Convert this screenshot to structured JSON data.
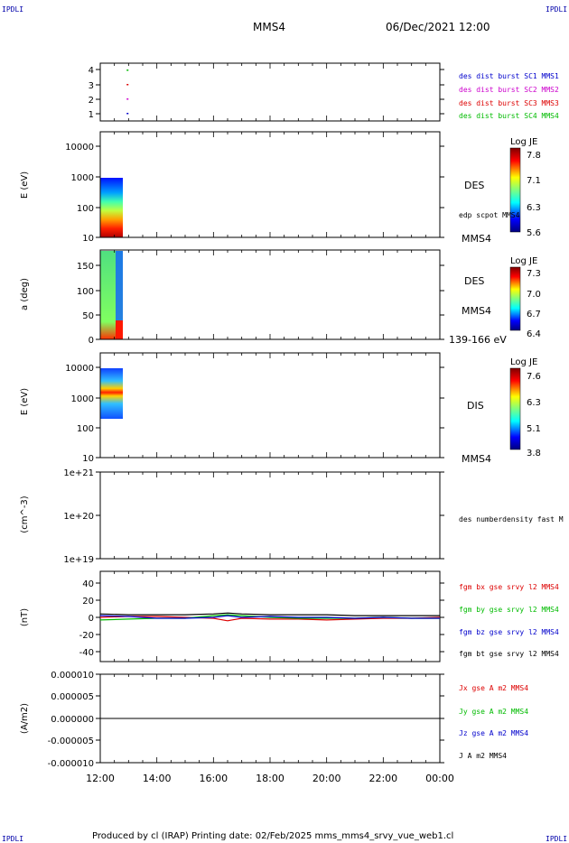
{
  "header": {
    "corner_label": "IPDLI",
    "spacecraft": "MMS4",
    "date": "06/Dec/2021 12:00"
  },
  "footer": {
    "text": "Produced by cl (IRAP)   Printing date: 02/Feb/2025   mms_mms4_srvy_vue_web1.cl"
  },
  "colors": {
    "mms1": "#0000cc",
    "mms2": "#cc00cc",
    "mms3": "#dd0000",
    "mms4": "#00bb00",
    "bt": "#000000"
  },
  "chart_data": [
    {
      "type": "scatter",
      "panel": "burst-availability",
      "ytick_labels": [
        "4",
        "3",
        "2",
        "1"
      ],
      "ylim": [
        0.5,
        4.5
      ],
      "series": [
        {
          "name": "des dist burst SC1 MMS1",
          "x_hours": [
            12.55
          ],
          "y": [
            1
          ]
        },
        {
          "name": "des dist burst SC2 MMS2",
          "x_hours": [
            12.55
          ],
          "y": [
            2
          ]
        },
        {
          "name": "des dist burst SC3 MMS3",
          "x_hours": [
            12.55
          ],
          "y": [
            3
          ]
        },
        {
          "name": "des dist burst SC4 MMS4",
          "x_hours": [
            12.55
          ],
          "y": [
            4
          ]
        }
      ]
    },
    {
      "type": "heatmap",
      "panel": "des-energy-spectrogram",
      "ylabel": "E (eV)",
      "ytick_labels": [
        "10000",
        "1000",
        "100",
        "10"
      ],
      "ylim": [
        10,
        30000
      ],
      "scale": "log",
      "data_x_range": [
        "12:00",
        "12:50"
      ],
      "data_y_range": [
        10,
        1000
      ],
      "labels": [
        "DES",
        "edp scpot MMS4",
        "MMS4"
      ],
      "colorbar": {
        "title": "Log JE",
        "ticks": [
          "7.8",
          "7.1",
          "6.3",
          "5.6"
        ]
      }
    },
    {
      "type": "heatmap",
      "panel": "des-pitch-angle",
      "ylabel": "a (deg)",
      "ytick_labels": [
        "150",
        "100",
        "50",
        "0"
      ],
      "ylim": [
        0,
        180
      ],
      "data_x_range": [
        "12:00",
        "12:50"
      ],
      "labels": [
        "DES",
        "MMS4",
        "139-166 eV"
      ],
      "colorbar": {
        "title": "Log JE",
        "ticks": [
          "7.3",
          "7.0",
          "6.7",
          "6.4"
        ]
      }
    },
    {
      "type": "heatmap",
      "panel": "dis-energy-spectrogram",
      "ylabel": "E (eV)",
      "ytick_labels": [
        "10000",
        "1000",
        "100",
        "10"
      ],
      "ylim": [
        10,
        30000
      ],
      "scale": "log",
      "data_x_range": [
        "12:00",
        "12:50"
      ],
      "data_y_range": [
        200,
        10000
      ],
      "labels": [
        "DIS",
        "MMS4"
      ],
      "colorbar": {
        "title": "Log JE",
        "ticks": [
          "7.6",
          "6.3",
          "5.1",
          "3.8"
        ]
      }
    },
    {
      "type": "line",
      "panel": "density",
      "ylabel": "(cm^-3)",
      "ytick_labels": [
        "1e+21",
        "1e+20",
        "1e+19"
      ],
      "scale": "log",
      "series": [
        {
          "name": "des numberdensity fast M",
          "x_hours": [],
          "values": []
        }
      ]
    },
    {
      "type": "line",
      "panel": "magnetic-field",
      "ylabel": "(nT)",
      "ytick_labels": [
        "40",
        "20",
        "0",
        "-20",
        "-40"
      ],
      "ylim": [
        -50,
        50
      ],
      "x_hours": [
        12,
        13,
        14,
        15,
        16,
        16.5,
        17,
        18,
        19,
        20,
        21,
        22,
        23,
        24
      ],
      "series": [
        {
          "name": "fgm bx gse srvy l2 MMS4",
          "values": [
            0,
            1,
            1,
            0,
            -1,
            -4,
            -1,
            -2,
            -2,
            -3,
            -2,
            -1,
            -1,
            0
          ]
        },
        {
          "name": "fgm by gse srvy l2 MMS4",
          "values": [
            -3,
            -2,
            -1,
            -1,
            2,
            3,
            2,
            0,
            -1,
            -1,
            -1,
            0,
            -1,
            -1
          ]
        },
        {
          "name": "fgm bz gse srvy l2 MMS4",
          "values": [
            2,
            1,
            -1,
            -1,
            0,
            2,
            0,
            1,
            0,
            0,
            -1,
            0,
            -1,
            -1
          ]
        },
        {
          "name": "fgm bt gse srvy l2 MMS4",
          "values": [
            4,
            3,
            3,
            3,
            4,
            5,
            4,
            3,
            3,
            3,
            2,
            2,
            2,
            2
          ]
        }
      ]
    },
    {
      "type": "line",
      "panel": "current-density",
      "ylabel": "(A/m2)",
      "ytick_labels": [
        "0.000010",
        "0.000005",
        "0.000000",
        "-0.000005",
        "-0.000010"
      ],
      "ylim": [
        -1e-05,
        1e-05
      ],
      "x_hours": [
        12,
        24
      ],
      "series": [
        {
          "name": "Jx gse A m2 MMS4",
          "values": [
            0,
            0
          ]
        },
        {
          "name": "Jy gse A m2 MMS4",
          "values": [
            0,
            0
          ]
        },
        {
          "name": "Jz gse A m2 MMS4",
          "values": [
            0,
            0
          ]
        },
        {
          "name": "J A m2 MMS4",
          "values": [
            0,
            0
          ]
        }
      ]
    }
  ],
  "x_axis": {
    "tick_labels": [
      "12:00",
      "14:00",
      "16:00",
      "18:00",
      "20:00",
      "22:00",
      "00:00"
    ],
    "range_hours": [
      12,
      24
    ]
  }
}
